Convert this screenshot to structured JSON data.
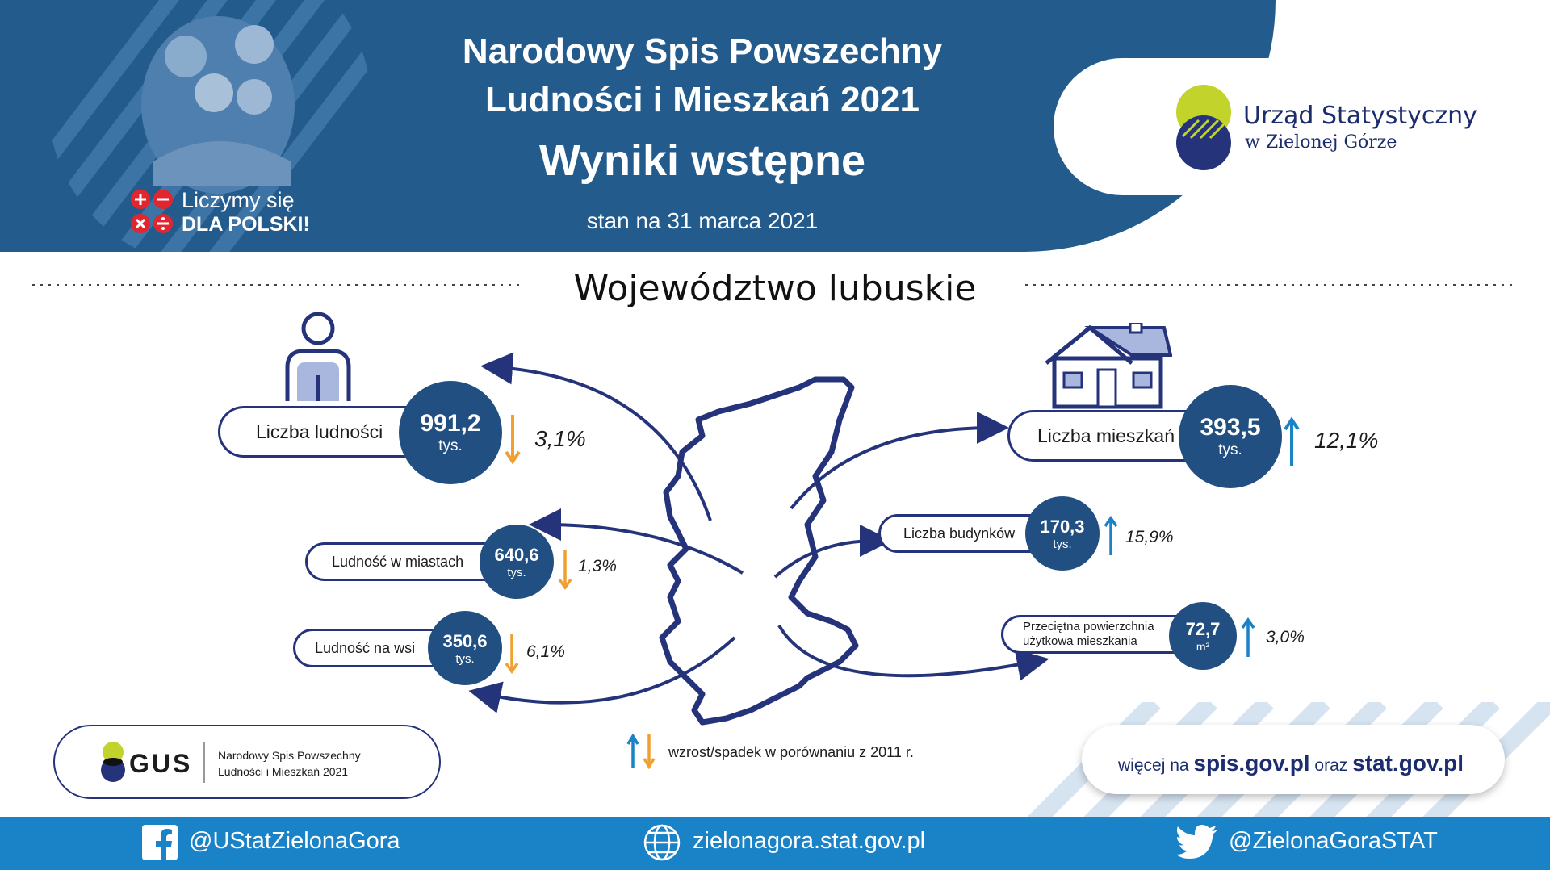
{
  "header": {
    "title_line1": "Narodowy Spis Powszechny",
    "title_line2": "Ludności i Mieszkań 2021",
    "subtitle": "Wyniki wstępne",
    "date": "stan na 31 marca 2021",
    "slogan_line1": "Liczymy się",
    "slogan_line2": "DLA POLSKI!"
  },
  "office": {
    "name_line1": "Urząd Statystyczny",
    "name_line2": "w Zielonej Górze"
  },
  "region": "Województwo lubuskie",
  "stats": {
    "population": {
      "label": "Liczba ludności",
      "value": "991,2",
      "unit": "tys.",
      "change": "3,1%",
      "direction": "down"
    },
    "urban": {
      "label": "Ludność w miastach",
      "value": "640,6",
      "unit": "tys.",
      "change": "1,3%",
      "direction": "down"
    },
    "rural": {
      "label": "Ludność na wsi",
      "value": "350,6",
      "unit": "tys.",
      "change": "6,1%",
      "direction": "down"
    },
    "dwellings": {
      "label": "Liczba mieszkań",
      "value": "393,5",
      "unit": "tys.",
      "change": "12,1%",
      "direction": "up"
    },
    "buildings": {
      "label": "Liczba budynków",
      "value": "170,3",
      "unit": "tys.",
      "change": "15,9%",
      "direction": "up"
    },
    "area": {
      "label_line1": "Przeciętna powierzchnia",
      "label_line2": "użytkowa mieszkania",
      "value": "72,7",
      "unit": "m²",
      "change": "3,0%",
      "direction": "up"
    }
  },
  "legend": "wzrost/spadek w porównaniu z 2011 r.",
  "gus": {
    "word": "GUS",
    "line1": "Narodowy Spis Powszechny",
    "line2": "Ludności i Mieszkań 2021"
  },
  "more": {
    "prefix": "więcej na",
    "site1": "spis.gov.pl",
    "mid": "oraz",
    "site2": "stat.gov.pl"
  },
  "footer": {
    "facebook": "@UStatZielonaGora",
    "website": "zielonagora.stat.gov.pl",
    "twitter": "@ZielonaGoraSTAT"
  },
  "colors": {
    "navy": "#235b8d",
    "dark_blue": "#25337a",
    "up_arrow": "#1a82c7",
    "down_arrow": "#f0a030",
    "lime": "#c2d32c",
    "footer": "#1a82c7"
  }
}
